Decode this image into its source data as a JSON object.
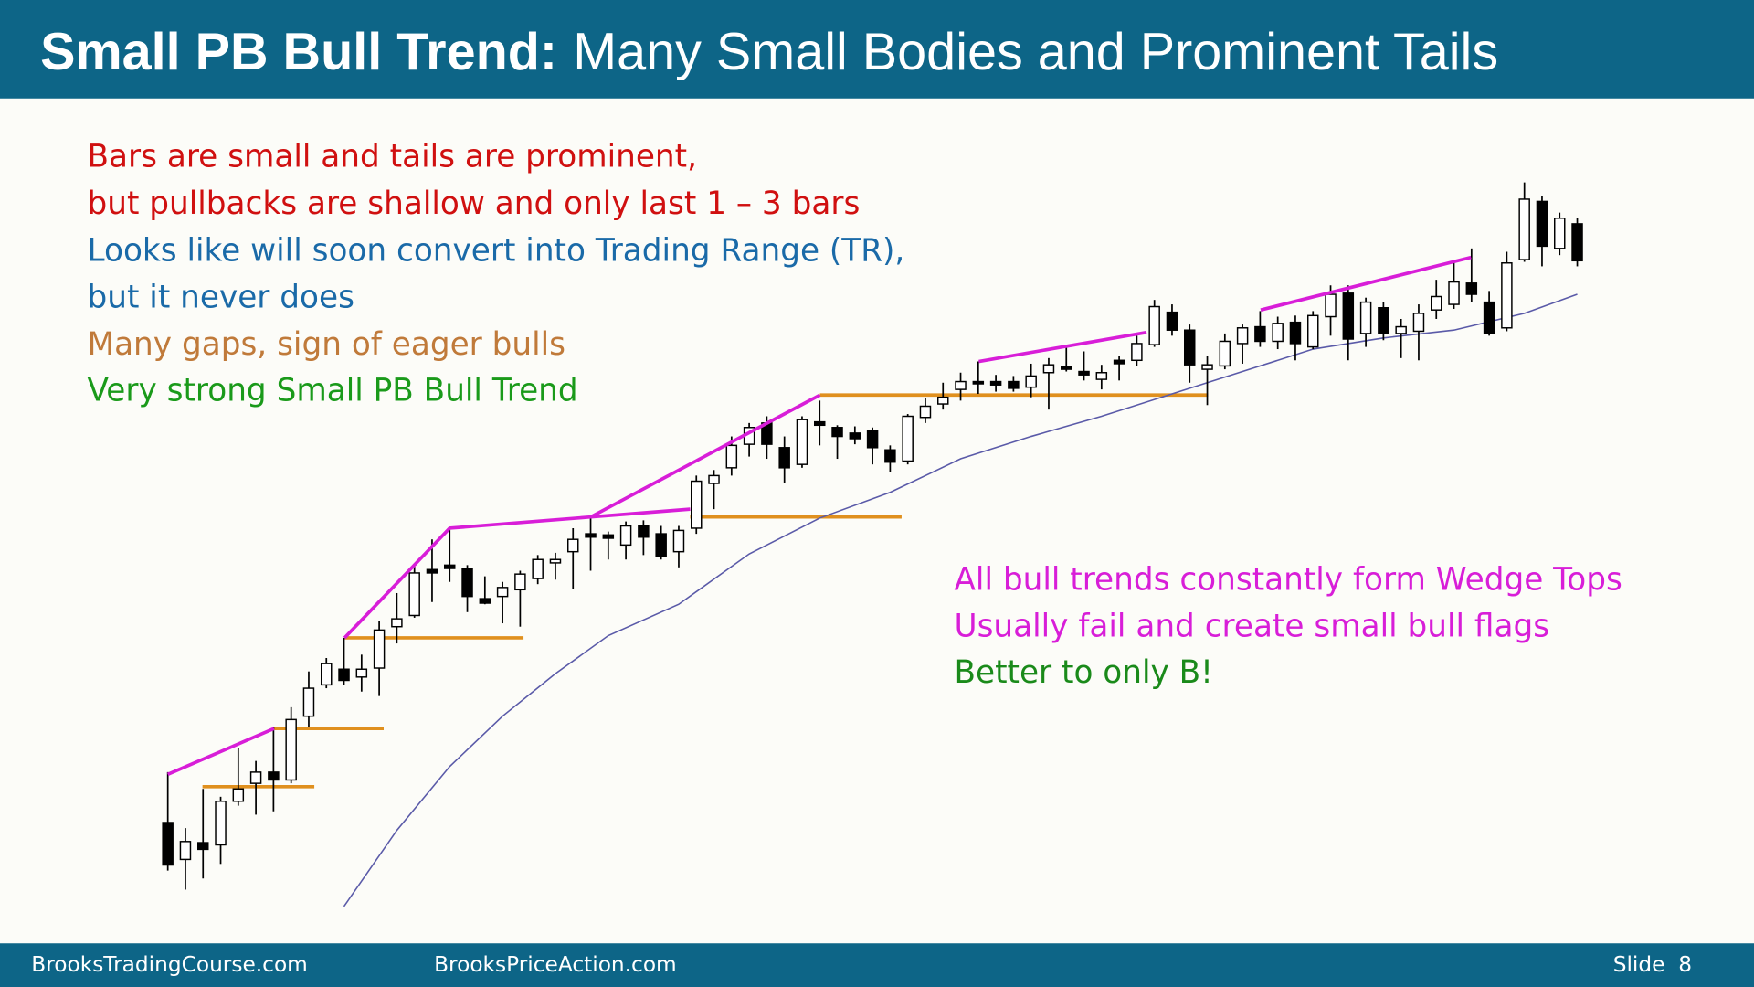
{
  "header": {
    "title_bold": "Small PB Bull Trend:",
    "title_rest": "Many Small Bodies and Prominent Tails"
  },
  "notes": [
    "Bars are small and tails are prominent,",
    "but pullbacks are shallow and only last 1 – 3 bars",
    "Looks like will soon convert into Trading Range (TR),",
    "but it never does",
    "Many gaps, sign of eager bulls",
    "Very strong Small PB Bull Trend"
  ],
  "right_notes": [
    "All bull trends constantly form Wedge Tops",
    "Usually fail and create small bull flags",
    "Better to only B!"
  ],
  "footer": {
    "left": "BrooksTradingCourse.com",
    "center": "BrooksPriceAction.com",
    "slide": "Slide  8"
  },
  "chart_data": {
    "type": "candlestick",
    "ylim": [
      0,
      700
    ],
    "open": [
      85,
      52,
      67,
      65,
      104,
      120,
      130,
      123,
      180,
      208,
      222,
      215,
      223,
      260,
      270,
      311,
      315,
      312,
      285,
      287,
      293,
      303,
      317,
      327,
      343,
      342,
      333,
      350,
      343,
      327,
      348,
      388,
      402,
      423,
      442,
      420,
      405,
      443,
      438,
      433,
      435,
      418,
      408,
      447,
      459,
      472,
      479,
      479,
      479,
      474,
      487,
      492,
      488,
      481,
      498,
      498,
      512,
      541,
      525,
      490,
      493,
      513,
      528,
      515,
      532,
      510,
      537,
      558,
      522,
      545,
      522,
      524,
      543,
      548,
      567,
      550,
      527,
      588,
      640,
      598,
      620
    ],
    "high": [
      130,
      80,
      115,
      108,
      152,
      140,
      170,
      188,
      220,
      232,
      250,
      235,
      265,
      290,
      315,
      338,
      348,
      315,
      305,
      300,
      310,
      324,
      326,
      348,
      358,
      345,
      354,
      355,
      350,
      350,
      395,
      400,
      430,
      442,
      448,
      430,
      448,
      462,
      440,
      439,
      438,
      422,
      450,
      464,
      478,
      487,
      497,
      485,
      484,
      495,
      500,
      510,
      506,
      494,
      502,
      520,
      552,
      548,
      530,
      502,
      522,
      530,
      542,
      537,
      538,
      542,
      565,
      565,
      554,
      550,
      535,
      548,
      570,
      586,
      598,
      560,
      595,
      657,
      645,
      630,
      625
    ],
    "low": [
      42,
      25,
      35,
      48,
      100,
      92,
      95,
      120,
      170,
      205,
      208,
      202,
      198,
      245,
      268,
      282,
      300,
      273,
      280,
      263,
      260,
      298,
      302,
      294,
      310,
      320,
      320,
      324,
      320,
      313,
      343,
      365,
      395,
      412,
      410,
      388,
      402,
      422,
      410,
      423,
      405,
      398,
      405,
      442,
      454,
      462,
      468,
      470,
      470,
      465,
      454,
      488,
      480,
      472,
      480,
      493,
      510,
      520,
      478,
      458,
      490,
      495,
      510,
      508,
      498,
      508,
      520,
      498,
      510,
      516,
      500,
      498,
      535,
      544,
      550,
      520,
      524,
      586,
      582,
      592,
      582
    ],
    "close": [
      47,
      68,
      61,
      104,
      115,
      130,
      123,
      177,
      205,
      227,
      212,
      222,
      257,
      267,
      308,
      308,
      312,
      287,
      281,
      295,
      307,
      320,
      320,
      338,
      340,
      339,
      350,
      340,
      323,
      346,
      390,
      395,
      422,
      438,
      423,
      402,
      445,
      440,
      430,
      428,
      420,
      407,
      448,
      457,
      465,
      479,
      477,
      476,
      473,
      484,
      494,
      490,
      485,
      487,
      495,
      513,
      546,
      525,
      494,
      494,
      515,
      527,
      515,
      531,
      513,
      538,
      557,
      517,
      550,
      522,
      528,
      540,
      555,
      568,
      557,
      522,
      585,
      642,
      600,
      625,
      587
    ],
    "ma": {
      "x": [
        10,
        13,
        16,
        19,
        22,
        25,
        29,
        33,
        37,
        41,
        45,
        49,
        53,
        57,
        61,
        65,
        69,
        73,
        77,
        80
      ],
      "values": [
        10,
        78,
        135,
        180,
        218,
        252,
        280,
        325,
        357,
        380,
        410,
        430,
        448,
        468,
        488,
        508,
        518,
        525,
        540,
        557
      ]
    }
  }
}
